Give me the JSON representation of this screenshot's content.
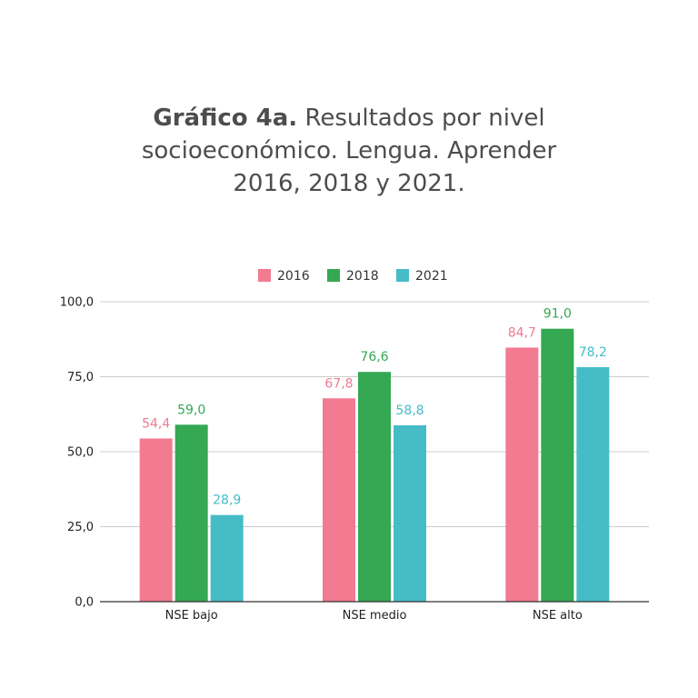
{
  "title": {
    "bold": "Gráfico 4a.",
    "rest": " Resultados por nivel",
    "line2": "socioeconómico. Lengua. Aprender",
    "line3": "2016, 2018 y 2021."
  },
  "chart_data": {
    "type": "bar",
    "categories": [
      "NSE bajo",
      "NSE medio",
      "NSE alto"
    ],
    "series": [
      {
        "name": "2016",
        "color": "#f27a91",
        "values": [
          54.4,
          67.8,
          84.7
        ],
        "labels": [
          "54,4",
          "67,8",
          "84,7"
        ]
      },
      {
        "name": "2018",
        "color": "#34a853",
        "values": [
          59.0,
          76.6,
          91.0
        ],
        "labels": [
          "59,0",
          "76,6",
          "91,0"
        ]
      },
      {
        "name": "2021",
        "color": "#46bcc7",
        "values": [
          28.9,
          58.8,
          78.2
        ],
        "labels": [
          "28,9",
          "58,8",
          "78,2"
        ]
      }
    ],
    "ylim": [
      0,
      100
    ],
    "yticks": [
      0,
      25,
      50,
      75,
      100
    ],
    "ytick_labels": [
      "0,0",
      "25,0",
      "50,0",
      "75,0",
      "100,0"
    ],
    "grid": true,
    "legend_position": "top-center"
  }
}
